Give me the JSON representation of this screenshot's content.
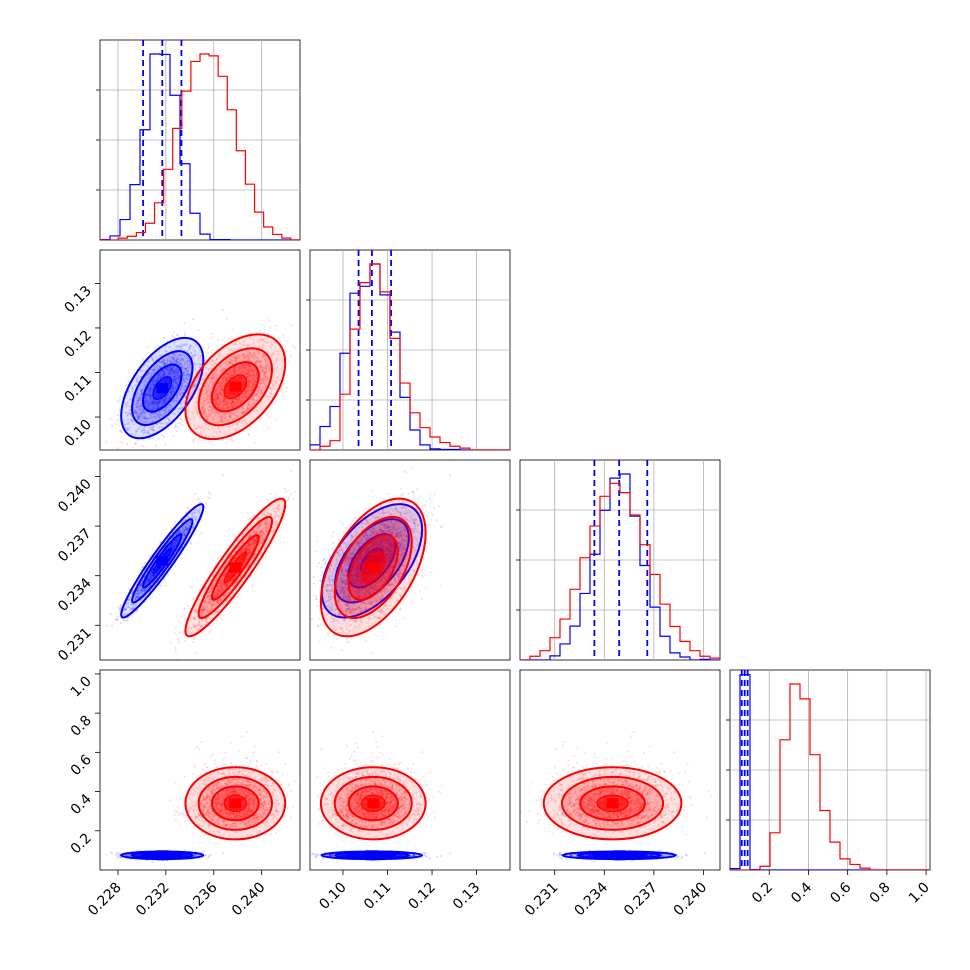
{
  "chart_data": {
    "type": "corner",
    "grid": true,
    "legend": "none",
    "colors": {
      "blue": "#0000ff",
      "red": "#ff0000"
    },
    "variables": [
      {
        "ticks": [
          0.228,
          0.232,
          0.236,
          0.24
        ],
        "tick_labels": [
          "0.228",
          "0.232",
          "0.236",
          "0.240"
        ],
        "range": [
          0.2265,
          0.2432
        ]
      },
      {
        "ticks": [
          0.1,
          0.11,
          0.12,
          0.13
        ],
        "tick_labels": [
          "0.10",
          "0.11",
          "0.12",
          "0.13"
        ],
        "range": [
          0.0926,
          0.1375
        ]
      },
      {
        "ticks": [
          0.231,
          0.234,
          0.237,
          0.24
        ],
        "tick_labels": [
          "0.231",
          "0.234",
          "0.237",
          "0.240"
        ],
        "range": [
          0.2289,
          0.241
        ]
      },
      {
        "ticks": [
          0.2,
          0.4,
          0.6,
          0.8,
          1.0
        ],
        "tick_labels": [
          "0.2",
          "0.4",
          "0.6",
          "0.8",
          "1.0"
        ],
        "range": [
          0.0,
          1.02
        ]
      }
    ],
    "series": [
      {
        "color": "#0000ff",
        "mean": [
          0.2317,
          0.1065,
          0.2349,
          0.075
        ],
        "sd": [
          0.0014,
          0.0046,
          0.0014,
          0.008
        ],
        "corr": [
          [
            1,
            0.55,
            0.95,
            0
          ],
          [
            0.55,
            1,
            0.55,
            0
          ],
          [
            0.95,
            0.55,
            1,
            0
          ],
          [
            0,
            0,
            0,
            1
          ]
        ],
        "quantiles": [
          [
            0.2301,
            0.2317,
            0.2333
          ],
          [
            0.1035,
            0.1065,
            0.1108
          ],
          [
            0.2334,
            0.2349,
            0.2366
          ],
          [
            0.06,
            0.075,
            0.09
          ]
        ]
      },
      {
        "color": "#ff0000",
        "mean": [
          0.2378,
          0.1068,
          0.2345,
          0.34
        ],
        "sd": [
          0.0017,
          0.0048,
          0.0017,
          0.075
        ],
        "corr": [
          [
            1,
            0.45,
            0.92,
            0
          ],
          [
            0.45,
            1,
            0.5,
            0
          ],
          [
            0.92,
            0.5,
            1,
            0
          ],
          [
            0,
            0,
            0,
            1
          ]
        ],
        "hist_1d": [
          [
            0,
            0,
            1,
            2,
            4,
            9,
            20,
            38,
            60,
            80,
            96,
            100,
            99,
            88,
            70,
            48,
            30,
            15,
            7,
            3,
            1,
            0
          ],
          [
            0,
            2,
            5,
            30,
            65,
            90,
            100,
            85,
            60,
            36,
            20,
            12,
            7,
            4,
            2,
            1,
            0,
            0,
            0,
            0
          ],
          [
            0,
            2,
            5,
            12,
            22,
            38,
            55,
            72,
            88,
            95,
            90,
            78,
            62,
            46,
            30,
            18,
            10,
            5,
            2,
            1
          ],
          [
            0,
            0,
            0,
            2,
            20,
            70,
            100,
            92,
            62,
            32,
            15,
            6,
            3,
            1,
            0,
            0,
            0,
            0,
            0,
            0
          ]
        ]
      }
    ]
  }
}
